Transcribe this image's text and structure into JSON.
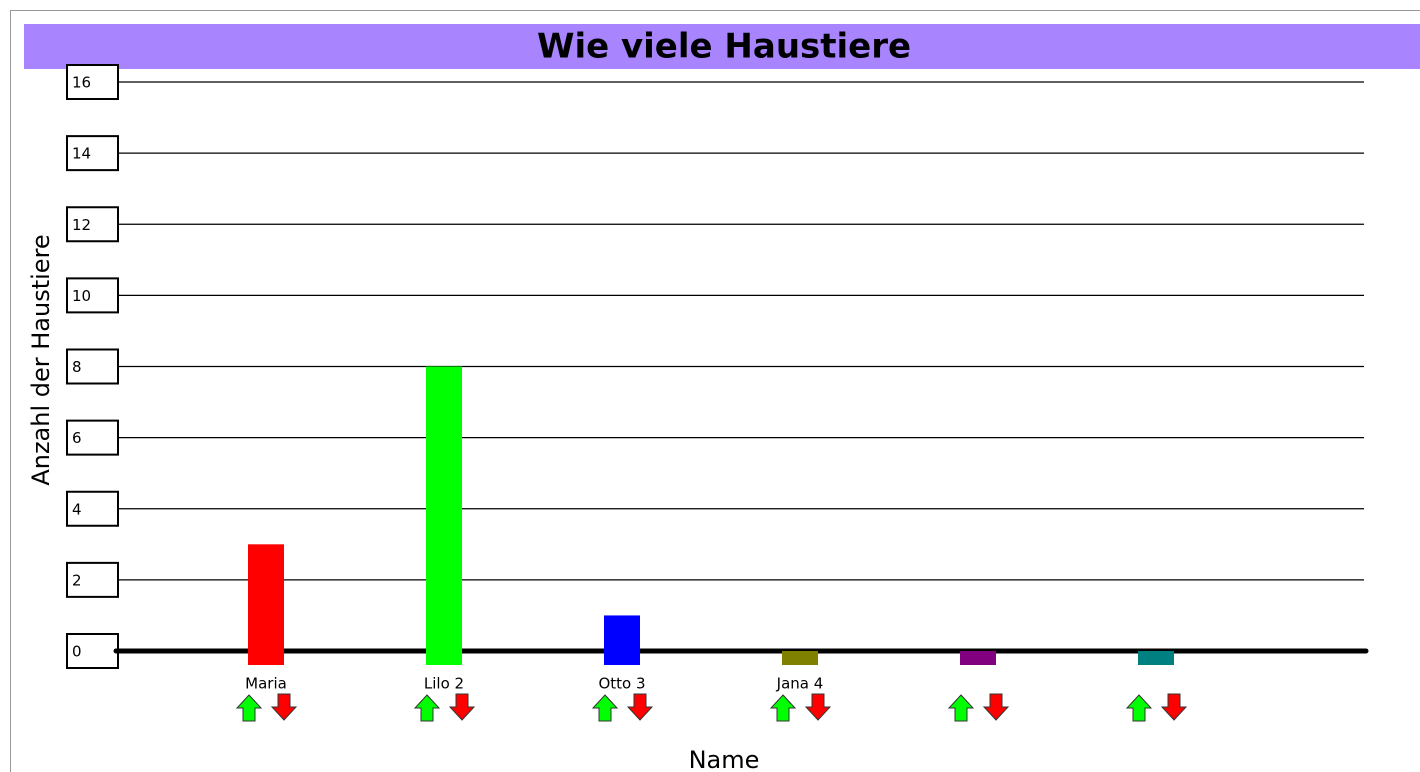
{
  "chart_data": {
    "type": "bar",
    "title": "Wie viele Haustiere",
    "y_label": "Anzahl der Haustiere",
    "x_label": "Name",
    "categories": [
      "Maria",
      "Lilo 2",
      "Otto 3",
      "Jana 4",
      null,
      null
    ],
    "values": [
      3,
      8,
      1,
      0,
      0,
      0
    ],
    "colors": [
      "#ff0000",
      "#00ff00",
      "#0000ff",
      "#808000",
      "#800080",
      "#008080"
    ],
    "ylim": [
      0,
      16
    ],
    "yticks": [
      0,
      2,
      4,
      6,
      8,
      10,
      12,
      14,
      16
    ],
    "grid": true
  }
}
